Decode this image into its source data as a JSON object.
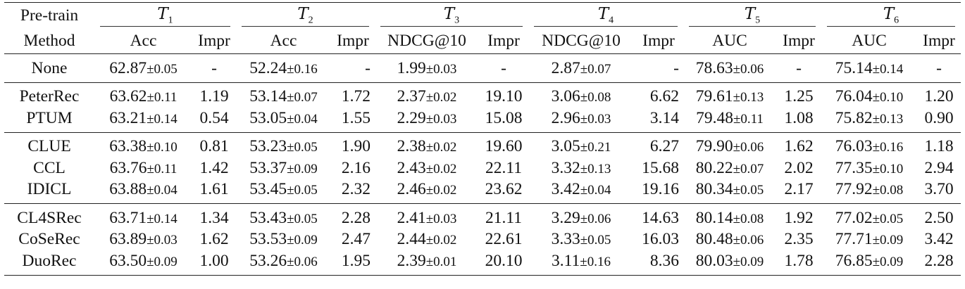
{
  "header": {
    "method_line1": "Pre-train",
    "method_line2": "Method",
    "tasks": [
      {
        "symbol": "T",
        "index": "1",
        "metric": "Acc",
        "impr": "Impr"
      },
      {
        "symbol": "T",
        "index": "2",
        "metric": "Acc",
        "impr": "Impr"
      },
      {
        "symbol": "T",
        "index": "3",
        "metric": "NDCG@10",
        "impr": "Impr"
      },
      {
        "symbol": "T",
        "index": "4",
        "metric": "NDCG@10",
        "impr": "Impr"
      },
      {
        "symbol": "T",
        "index": "5",
        "metric": "AUC",
        "impr": "Impr"
      },
      {
        "symbol": "T",
        "index": "6",
        "metric": "AUC",
        "impr": "Impr"
      }
    ]
  },
  "rows": [
    {
      "method": "None",
      "group": 0,
      "cells": [
        {
          "mean": "62.87",
          "std": "±0.05",
          "impr": "-"
        },
        {
          "mean": "52.24",
          "std": "±0.16",
          "impr": "-"
        },
        {
          "mean": "1.99",
          "std": "±0.03",
          "impr": "-"
        },
        {
          "mean": "2.87",
          "std": "±0.07",
          "impr": "-"
        },
        {
          "mean": "78.63",
          "std": "±0.06",
          "impr": "-"
        },
        {
          "mean": "75.14",
          "std": "±0.14",
          "impr": "-"
        }
      ]
    },
    {
      "method": "PeterRec",
      "group": 1,
      "cells": [
        {
          "mean": "63.62",
          "std": "±0.11",
          "impr": "1.19"
        },
        {
          "mean": "53.14",
          "std": "±0.07",
          "impr": "1.72"
        },
        {
          "mean": "2.37",
          "std": "±0.02",
          "impr": "19.10"
        },
        {
          "mean": "3.06",
          "std": "±0.08",
          "impr": "6.62"
        },
        {
          "mean": "79.61",
          "std": "±0.13",
          "impr": "1.25"
        },
        {
          "mean": "76.04",
          "std": "±0.10",
          "impr": "1.20"
        }
      ]
    },
    {
      "method": "PTUM",
      "group": 1,
      "cells": [
        {
          "mean": "63.21",
          "std": "±0.14",
          "impr": "0.54"
        },
        {
          "mean": "53.05",
          "std": "±0.04",
          "impr": "1.55"
        },
        {
          "mean": "2.29",
          "std": "±0.03",
          "impr": "15.08"
        },
        {
          "mean": "2.96",
          "std": "±0.03",
          "impr": "3.14"
        },
        {
          "mean": "79.48",
          "std": "±0.11",
          "impr": "1.08"
        },
        {
          "mean": "75.82",
          "std": "±0.13",
          "impr": "0.90"
        }
      ]
    },
    {
      "method": "CLUE",
      "group": 2,
      "cells": [
        {
          "mean": "63.38",
          "std": "±0.10",
          "impr": "0.81"
        },
        {
          "mean": "53.23",
          "std": "±0.05",
          "impr": "1.90"
        },
        {
          "mean": "2.38",
          "std": "±0.02",
          "impr": "19.60"
        },
        {
          "mean": "3.05",
          "std": "±0.21",
          "impr": "6.27"
        },
        {
          "mean": "79.90",
          "std": "±0.06",
          "impr": "1.62"
        },
        {
          "mean": "76.03",
          "std": "±0.16",
          "impr": "1.18"
        }
      ]
    },
    {
      "method": "CCL",
      "group": 2,
      "cells": [
        {
          "mean": "63.76",
          "std": "±0.11",
          "impr": "1.42"
        },
        {
          "mean": "53.37",
          "std": "±0.09",
          "impr": "2.16"
        },
        {
          "mean": "2.43",
          "std": "±0.02",
          "impr": "22.11"
        },
        {
          "mean": "3.32",
          "std": "±0.13",
          "impr": "15.68"
        },
        {
          "mean": "80.22",
          "std": "±0.07",
          "impr": "2.02"
        },
        {
          "mean": "77.35",
          "std": "±0.10",
          "impr": "2.94"
        }
      ]
    },
    {
      "method": "IDICL",
      "group": 2,
      "cells": [
        {
          "mean": "63.88",
          "std": "±0.04",
          "impr": "1.61"
        },
        {
          "mean": "53.45",
          "std": "±0.05",
          "impr": "2.32"
        },
        {
          "mean": "2.46",
          "std": "±0.02",
          "impr": "23.62"
        },
        {
          "mean": "3.42",
          "std": "±0.04",
          "impr": "19.16"
        },
        {
          "mean": "80.34",
          "std": "±0.05",
          "impr": "2.17"
        },
        {
          "mean": "77.92",
          "std": "±0.08",
          "impr": "3.70"
        }
      ]
    },
    {
      "method": "CL4SRec",
      "group": 3,
      "cells": [
        {
          "mean": "63.71",
          "std": "±0.14",
          "impr": "1.34"
        },
        {
          "mean": "53.43",
          "std": "±0.05",
          "impr": "2.28"
        },
        {
          "mean": "2.41",
          "std": "±0.03",
          "impr": "21.11"
        },
        {
          "mean": "3.29",
          "std": "±0.06",
          "impr": "14.63"
        },
        {
          "mean": "80.14",
          "std": "±0.08",
          "impr": "1.92"
        },
        {
          "mean": "77.02",
          "std": "±0.05",
          "impr": "2.50"
        }
      ]
    },
    {
      "method": "CoSeRec",
      "group": 3,
      "cells": [
        {
          "mean": "63.89",
          "std": "±0.03",
          "impr": "1.62"
        },
        {
          "mean": "53.53",
          "std": "±0.09",
          "impr": "2.47"
        },
        {
          "mean": "2.44",
          "std": "±0.02",
          "impr": "22.61"
        },
        {
          "mean": "3.33",
          "std": "±0.05",
          "impr": "16.03"
        },
        {
          "mean": "80.48",
          "std": "±0.06",
          "impr": "2.35"
        },
        {
          "mean": "77.71",
          "std": "±0.09",
          "impr": "3.42"
        }
      ]
    },
    {
      "method": "DuoRec",
      "group": 3,
      "cells": [
        {
          "mean": "63.50",
          "std": "±0.09",
          "impr": "1.00"
        },
        {
          "mean": "53.26",
          "std": "±0.06",
          "impr": "1.95"
        },
        {
          "mean": "2.39",
          "std": "±0.01",
          "impr": "20.10"
        },
        {
          "mean": "3.11",
          "std": "±0.16",
          "impr": "8.36"
        },
        {
          "mean": "80.03",
          "std": "±0.09",
          "impr": "1.78"
        },
        {
          "mean": "76.85",
          "std": "±0.09",
          "impr": "2.28"
        }
      ]
    }
  ]
}
